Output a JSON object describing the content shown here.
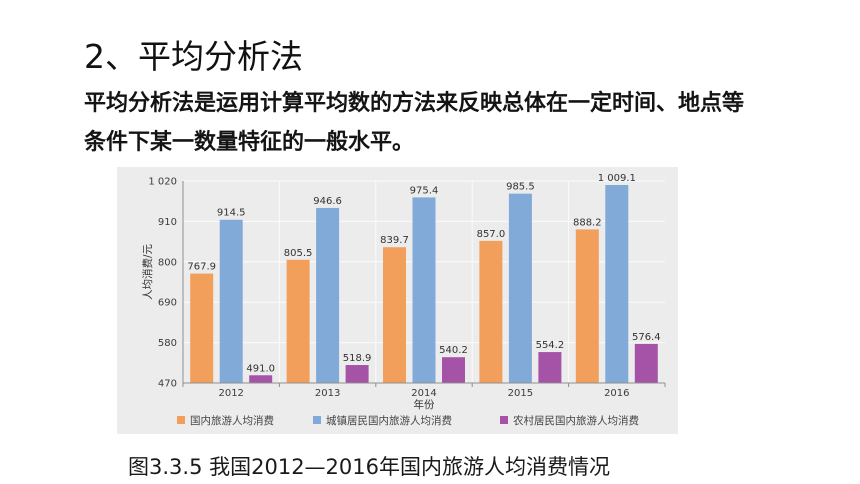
{
  "slide": {
    "heading": "2、平均分析法",
    "paragraph_lines": [
      "平均分析法是运用计算平均数的方法来反映总体在一定时间、地点等",
      "条件下某一数量特征的一般水平。"
    ],
    "caption": "图3.3.5 我国2012—2016年国内旅游人均消费情况"
  },
  "chart_data": {
    "type": "bar",
    "xlabel": "年份",
    "ylabel": "人均消费/元",
    "categories": [
      "2012",
      "2013",
      "2014",
      "2015",
      "2016"
    ],
    "ylim": [
      470,
      1020
    ],
    "yticks": [
      470,
      580,
      690,
      800,
      910,
      1020
    ],
    "ytick_labels": [
      "470",
      "580",
      "690",
      "800",
      "910",
      "1 020"
    ],
    "grid": true,
    "legend": "bottom",
    "series": [
      {
        "name": "国内旅游人均消费",
        "color": "#f29f5c",
        "values": [
          767.9,
          805.5,
          839.7,
          857.0,
          888.2
        ],
        "labels": [
          "767.9",
          "805.5",
          "839.7",
          "857.0",
          "888.2"
        ]
      },
      {
        "name": "城镇居民国内旅游人均消费",
        "color": "#81aad8",
        "values": [
          914.5,
          946.6,
          975.4,
          985.5,
          1009.1
        ],
        "labels": [
          "914.5",
          "946.6",
          "975.4",
          "985.5",
          "1 009.1"
        ]
      },
      {
        "name": "农村居民国内旅游人均消费",
        "color": "#a453a6",
        "values": [
          491.0,
          518.9,
          540.2,
          554.2,
          576.4
        ],
        "labels": [
          "491.0",
          "518.9",
          "540.2",
          "554.2",
          "576.4"
        ]
      }
    ]
  }
}
